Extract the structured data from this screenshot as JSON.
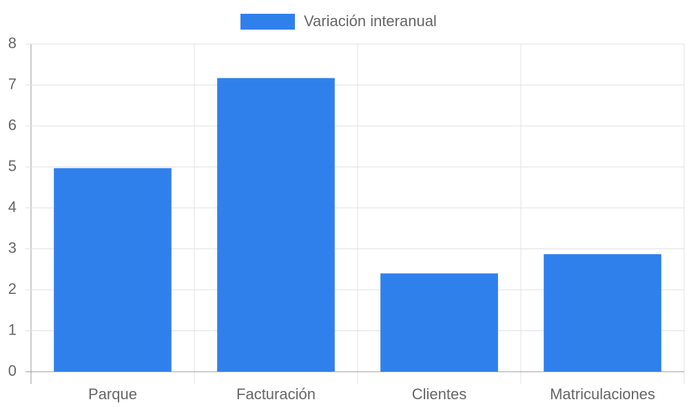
{
  "chart_data": {
    "type": "bar",
    "categories": [
      "Parque",
      "Facturación",
      "Clientes",
      "Matriculaciones"
    ],
    "series": [
      {
        "name": "Variación interanual",
        "color": "#3080ec",
        "values": [
          4.97,
          7.17,
          2.4,
          2.87
        ]
      }
    ],
    "ylim": [
      0,
      8
    ],
    "yticks": [
      0,
      1,
      2,
      3,
      4,
      5,
      6,
      7,
      8
    ],
    "grid": true,
    "legend": "top"
  }
}
